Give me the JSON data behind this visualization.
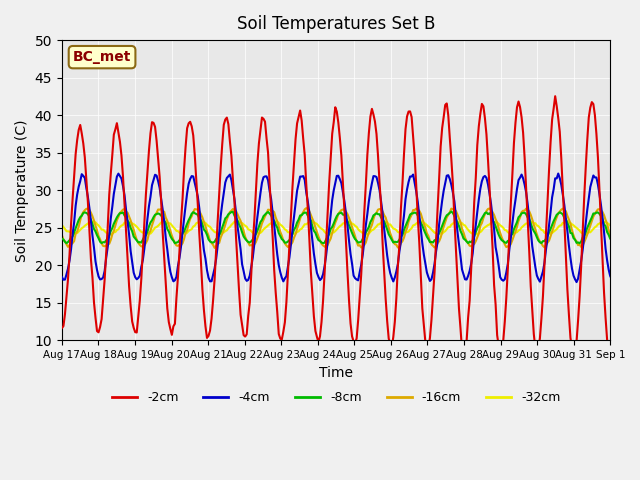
{
  "title": "Soil Temperatures Set B",
  "xlabel": "Time",
  "ylabel": "Soil Temperature (C)",
  "ylim": [
    10,
    50
  ],
  "yticks": [
    10,
    15,
    20,
    25,
    30,
    35,
    40,
    45,
    50
  ],
  "annotation": "BC_met",
  "legend_labels": [
    "-2cm",
    "-4cm",
    "-8cm",
    "-16cm",
    "-32cm"
  ],
  "colors": {
    "-2cm": "#dd0000",
    "-4cm": "#0000cc",
    "-8cm": "#00bb00",
    "-16cm": "#ddaa00",
    "-32cm": "#eeee00"
  },
  "line_widths": {
    "-2cm": 1.5,
    "-4cm": 1.5,
    "-8cm": 1.5,
    "-16cm": 1.5,
    "-32cm": 1.5
  },
  "fig_facecolor": "#f0f0f0",
  "plot_bg_color": "#e8e8e8",
  "xtick_labels": [
    "Aug 17",
    "Aug 18",
    "Aug 19",
    "Aug 20",
    "Aug 21",
    "Aug 22",
    "Aug 23",
    "Aug 24",
    "Aug 25",
    "Aug 26",
    "Aug 27",
    "Aug 28",
    "Aug 29",
    "Aug 30",
    "Aug 31",
    "Sep 1"
  ]
}
